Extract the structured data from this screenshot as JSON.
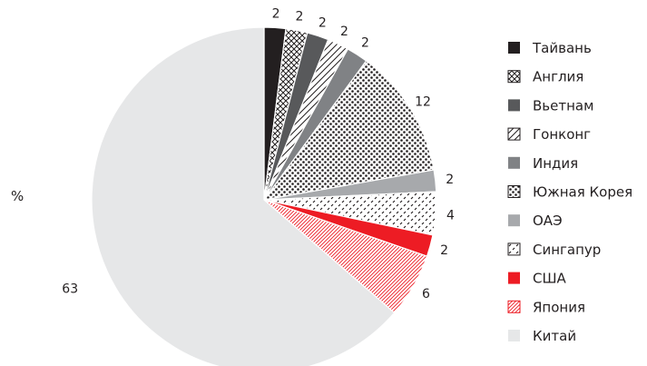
{
  "chart_data": {
    "type": "pie",
    "unit_label": "%",
    "categories": [
      "Тайвань",
      "Англия",
      "Вьетнам",
      "Гонконг",
      "Индия",
      "Южная Корея",
      "ОАЭ",
      "Сингапур",
      "США",
      "Япония",
      "Китай"
    ],
    "values": [
      2,
      2,
      2,
      2,
      2,
      12,
      2,
      4,
      2,
      6,
      63
    ],
    "data_labels": [
      "2",
      "2",
      "2",
      "2",
      "2",
      "12",
      "2",
      "4",
      "2",
      "6",
      "63"
    ],
    "legend_position": "right",
    "fills": [
      {
        "pattern": "solid",
        "color": "#231f20"
      },
      {
        "pattern": "crosshatch",
        "color": "#231f20"
      },
      {
        "pattern": "solid",
        "color": "#58595b"
      },
      {
        "pattern": "diagonal-wide",
        "color": "#231f20"
      },
      {
        "pattern": "solid",
        "color": "#808285"
      },
      {
        "pattern": "dots",
        "color": "#231f20"
      },
      {
        "pattern": "solid",
        "color": "#a7a9ac"
      },
      {
        "pattern": "dashes",
        "color": "#231f20"
      },
      {
        "pattern": "solid",
        "color": "#ed1c24"
      },
      {
        "pattern": "diagonal-dense",
        "color": "#ed1c24"
      },
      {
        "pattern": "solid",
        "color": "#e6e7e8"
      }
    ]
  }
}
